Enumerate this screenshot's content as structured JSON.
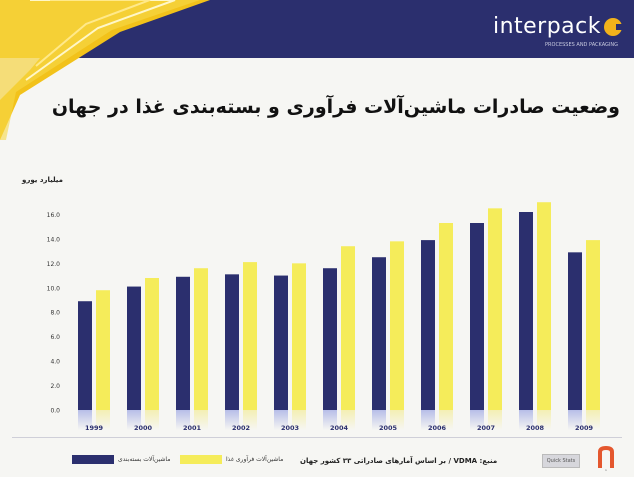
{
  "header": {
    "brand": "interpack",
    "brand_sub": "PROCESSES AND PACKAGING",
    "accent": "#2b2f6e",
    "brand_color": "#f2b21b"
  },
  "page_title": "وضعیت صادرات ماشین‌آلات فرآوری و بسته‌بندی غذا در جهان",
  "footer": {
    "source": "منبع: VDMA / بر اساس آمارهای صادراتی ۳۳ کشور جهان",
    "badge": "Quick Stats",
    "logo": "n"
  },
  "chart_data": {
    "type": "bar",
    "ylabel": "میلیارد یورو",
    "ylim": [
      0,
      18
    ],
    "yticks": [
      "0.0",
      "2.0",
      "4.0",
      "6.0",
      "8.0",
      "10.0",
      "12.0",
      "14.0",
      "16.0"
    ],
    "categories": [
      "1999",
      "2000",
      "2001",
      "2002",
      "2003",
      "2004",
      "2005",
      "2006",
      "2007",
      "2008",
      "2009"
    ],
    "series": [
      {
        "name": "ماشین‌آلات بسته‌بندی",
        "color": "#2b2f6e",
        "values": [
          8.9,
          10.1,
          10.9,
          11.1,
          11.0,
          11.6,
          12.5,
          13.9,
          15.3,
          16.2,
          12.9
        ]
      },
      {
        "name": "ماشین‌آلات فرآوری غذا",
        "color": "#f5ec5a",
        "values": [
          9.8,
          10.8,
          11.6,
          12.1,
          12.0,
          13.4,
          13.8,
          15.3,
          16.5,
          17.0,
          13.9
        ]
      }
    ],
    "grid": false,
    "legend": "bottom-left"
  }
}
